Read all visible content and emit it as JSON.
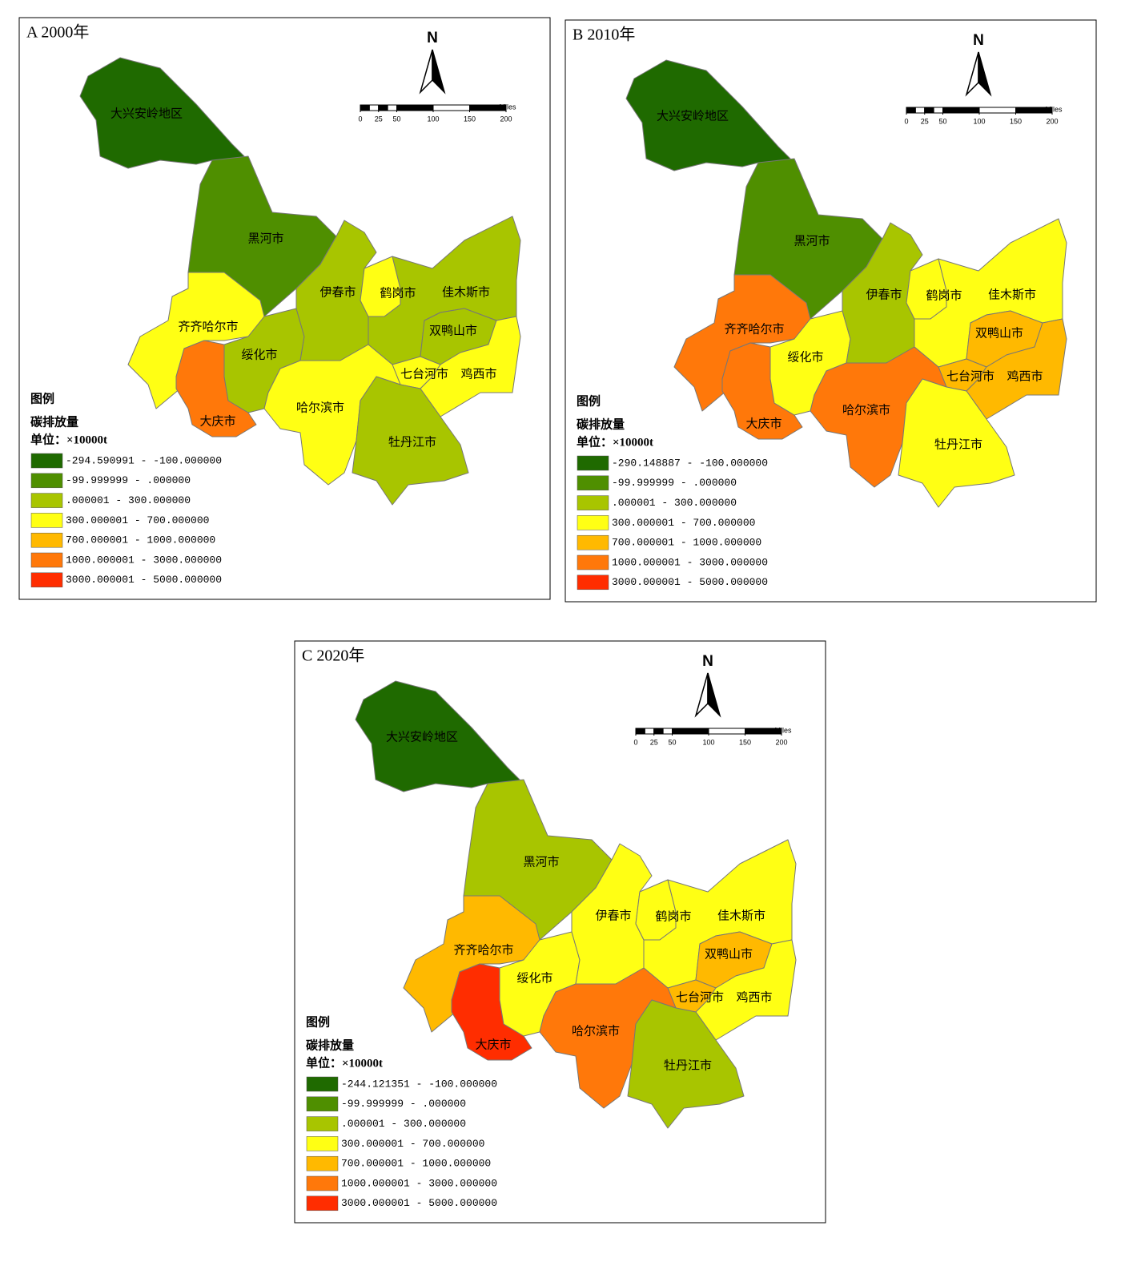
{
  "panels": [
    {
      "title": "A 2000年",
      "north": "N",
      "scale": {
        "ticks": [
          0,
          25,
          50,
          100,
          150,
          200
        ],
        "unit": "Miles"
      },
      "legend": {
        "title": "图例",
        "subtitle": "碳排放量",
        "unit": "单位：×10000t",
        "items": [
          {
            "label": "-294.590991 - -100.000000",
            "color": "#1f6a00"
          },
          {
            "label": "-99.999999 - .000000",
            "color": "#4f8f00"
          },
          {
            "label": ".000001 - 300.000000",
            "color": "#a8c500"
          },
          {
            "label": "300.000001 - 700.000000",
            "color": "#ffff14"
          },
          {
            "label": "700.000001 - 1000.000000",
            "color": "#ffb900"
          },
          {
            "label": "1000.000001 - 3000.000000",
            "color": "#ff780a"
          },
          {
            "label": "3000.000001 - 5000.000000",
            "color": "#ff2d00"
          }
        ]
      },
      "regions": [
        {
          "name": "大兴安岭地区",
          "color": "#1f6a00"
        },
        {
          "name": "黑河市",
          "color": "#4f8f00"
        },
        {
          "name": "齐齐哈尔市",
          "color": "#ffff14"
        },
        {
          "name": "大庆市",
          "color": "#ff780a"
        },
        {
          "name": "绥化市",
          "color": "#a8c500"
        },
        {
          "name": "伊春市",
          "color": "#a8c500"
        },
        {
          "name": "鹤岗市",
          "color": "#ffff14"
        },
        {
          "name": "佳木斯市",
          "color": "#a8c500"
        },
        {
          "name": "双鸭山市",
          "color": "#a8c500"
        },
        {
          "name": "七台河市",
          "color": "#ffff14"
        },
        {
          "name": "鸡西市",
          "color": "#ffff14"
        },
        {
          "name": "哈尔滨市",
          "color": "#ffff14"
        },
        {
          "name": "牡丹江市",
          "color": "#a8c500"
        }
      ]
    },
    {
      "title": "B 2010年",
      "north": "N",
      "scale": {
        "ticks": [
          0,
          25,
          50,
          100,
          150,
          200
        ],
        "unit": "Miles"
      },
      "legend": {
        "title": "图例",
        "subtitle": "碳排放量",
        "unit": "单位：×10000t",
        "items": [
          {
            "label": "-290.148887 - -100.000000",
            "color": "#1f6a00"
          },
          {
            "label": "-99.999999 - .000000",
            "color": "#4f8f00"
          },
          {
            "label": ".000001 - 300.000000",
            "color": "#a8c500"
          },
          {
            "label": "300.000001 - 700.000000",
            "color": "#ffff14"
          },
          {
            "label": "700.000001 - 1000.000000",
            "color": "#ffb900"
          },
          {
            "label": "1000.000001 - 3000.000000",
            "color": "#ff780a"
          },
          {
            "label": "3000.000001 - 5000.000000",
            "color": "#ff2d00"
          }
        ]
      },
      "regions": [
        {
          "name": "大兴安岭地区",
          "color": "#1f6a00"
        },
        {
          "name": "黑河市",
          "color": "#4f8f00"
        },
        {
          "name": "齐齐哈尔市",
          "color": "#ff780a"
        },
        {
          "name": "大庆市",
          "color": "#ff780a"
        },
        {
          "name": "绥化市",
          "color": "#ffff14"
        },
        {
          "name": "伊春市",
          "color": "#a8c500"
        },
        {
          "name": "鹤岗市",
          "color": "#ffff14"
        },
        {
          "name": "佳木斯市",
          "color": "#ffff14"
        },
        {
          "name": "双鸭山市",
          "color": "#ffb900"
        },
        {
          "name": "七台河市",
          "color": "#ffb900"
        },
        {
          "name": "鸡西市",
          "color": "#ffb900"
        },
        {
          "name": "哈尔滨市",
          "color": "#ff780a"
        },
        {
          "name": "牡丹江市",
          "color": "#ffff14"
        }
      ]
    },
    {
      "title": "C 2020年",
      "north": "N",
      "scale": {
        "ticks": [
          0,
          25,
          50,
          100,
          150,
          200
        ],
        "unit": "Miles"
      },
      "legend": {
        "title": "图例",
        "subtitle": "碳排放量",
        "unit": "单位：×10000t",
        "items": [
          {
            "label": "-244.121351 - -100.000000",
            "color": "#1f6a00"
          },
          {
            "label": "-99.999999 - .000000",
            "color": "#4f8f00"
          },
          {
            "label": ".000001 - 300.000000",
            "color": "#a8c500"
          },
          {
            "label": "300.000001 - 700.000000",
            "color": "#ffff14"
          },
          {
            "label": "700.000001 - 1000.000000",
            "color": "#ffb900"
          },
          {
            "label": "1000.000001 - 3000.000000",
            "color": "#ff780a"
          },
          {
            "label": "3000.000001 - 5000.000000",
            "color": "#ff2d00"
          }
        ]
      },
      "regions": [
        {
          "name": "大兴安岭地区",
          "color": "#1f6a00"
        },
        {
          "name": "黑河市",
          "color": "#a8c500"
        },
        {
          "name": "齐齐哈尔市",
          "color": "#ffb900"
        },
        {
          "name": "大庆市",
          "color": "#ff2d00"
        },
        {
          "name": "绥化市",
          "color": "#ffff14"
        },
        {
          "name": "伊春市",
          "color": "#ffff14"
        },
        {
          "name": "鹤岗市",
          "color": "#ffff14"
        },
        {
          "name": "佳木斯市",
          "color": "#ffff14"
        },
        {
          "name": "双鸭山市",
          "color": "#ffb900"
        },
        {
          "name": "七台河市",
          "color": "#ffb900"
        },
        {
          "name": "鸡西市",
          "color": "#ffff14"
        },
        {
          "name": "哈尔滨市",
          "color": "#ff780a"
        },
        {
          "name": "牡丹江市",
          "color": "#a8c500"
        }
      ]
    }
  ]
}
